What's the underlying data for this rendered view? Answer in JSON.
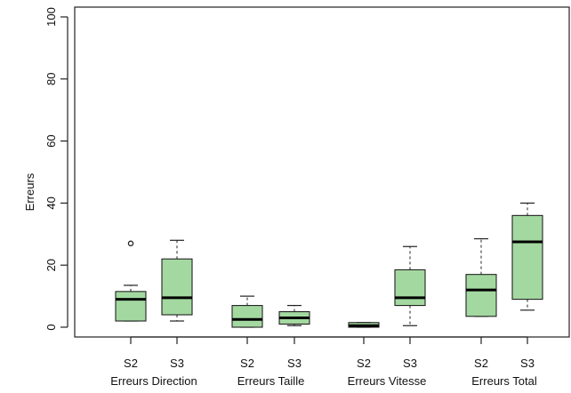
{
  "chart_data": {
    "type": "boxplot",
    "title": "",
    "xlabel": "",
    "ylabel": "Erreurs",
    "ylim": [
      0,
      100
    ],
    "y_ticks": [
      0,
      20,
      40,
      60,
      80,
      100
    ],
    "grid": false,
    "box_color": "#a3d9a0",
    "categories": [
      "S2",
      "S3",
      "S2",
      "S3",
      "S2",
      "S3",
      "S2",
      "S3"
    ],
    "group_labels": [
      "Erreurs Direction",
      "Erreurs Taille",
      "Erreurs Vitesse",
      "Erreurs Total"
    ],
    "boxes": [
      {
        "label": "S2",
        "group": "Erreurs Direction",
        "whisker_low": 2,
        "q1": 2,
        "median": 9,
        "q3": 11.5,
        "whisker_high": 13.5,
        "outliers": [
          27
        ]
      },
      {
        "label": "S3",
        "group": "Erreurs Direction",
        "whisker_low": 2,
        "q1": 4,
        "median": 9.5,
        "q3": 22,
        "whisker_high": 28,
        "outliers": []
      },
      {
        "label": "S2",
        "group": "Erreurs Taille",
        "whisker_low": 0,
        "q1": 0,
        "median": 2.5,
        "q3": 7,
        "whisker_high": 10,
        "outliers": []
      },
      {
        "label": "S3",
        "group": "Erreurs Taille",
        "whisker_low": 0.5,
        "q1": 1,
        "median": 3,
        "q3": 5,
        "whisker_high": 7,
        "outliers": []
      },
      {
        "label": "S2",
        "group": "Erreurs Vitesse",
        "whisker_low": 0,
        "q1": 0,
        "median": 0.5,
        "q3": 1.5,
        "whisker_high": 1.5,
        "outliers": []
      },
      {
        "label": "S3",
        "group": "Erreurs Vitesse",
        "whisker_low": 0.5,
        "q1": 7,
        "median": 9.5,
        "q3": 18.5,
        "whisker_high": 26,
        "outliers": []
      },
      {
        "label": "S2",
        "group": "Erreurs Total",
        "whisker_low": 3.5,
        "q1": 3.5,
        "median": 12,
        "q3": 17,
        "whisker_high": 28.5,
        "outliers": []
      },
      {
        "label": "S3",
        "group": "Erreurs Total",
        "whisker_low": 5.5,
        "q1": 9,
        "median": 27.5,
        "q3": 36,
        "whisker_high": 40,
        "outliers": []
      }
    ]
  }
}
